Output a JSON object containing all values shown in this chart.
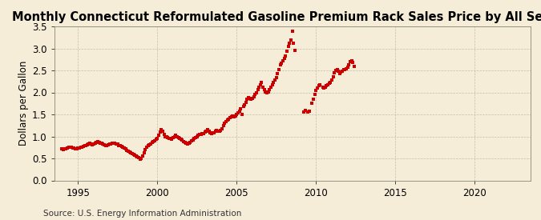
{
  "title": "Monthly Connecticut Reformulated Gasoline Premium Rack Sales Price by All Sellers",
  "ylabel": "Dollars per Gallon",
  "source": "Source: U.S. Energy Information Administration",
  "xlim": [
    1993.5,
    2023.5
  ],
  "ylim": [
    0.0,
    3.5
  ],
  "xticks": [
    1995,
    2000,
    2005,
    2010,
    2015,
    2020
  ],
  "yticks": [
    0.0,
    0.5,
    1.0,
    1.5,
    2.0,
    2.5,
    3.0,
    3.5
  ],
  "marker_color": "#CC0000",
  "background_color": "#F5EDD8",
  "title_fontsize": 10.5,
  "axis_fontsize": 8.5,
  "source_fontsize": 7.5,
  "data": [
    [
      1994.0,
      0.72
    ],
    [
      1994.08,
      0.7
    ],
    [
      1994.17,
      0.71
    ],
    [
      1994.25,
      0.72
    ],
    [
      1994.33,
      0.73
    ],
    [
      1994.42,
      0.75
    ],
    [
      1994.5,
      0.76
    ],
    [
      1994.58,
      0.75
    ],
    [
      1994.67,
      0.74
    ],
    [
      1994.75,
      0.73
    ],
    [
      1994.83,
      0.72
    ],
    [
      1994.92,
      0.72
    ],
    [
      1995.0,
      0.73
    ],
    [
      1995.08,
      0.74
    ],
    [
      1995.17,
      0.75
    ],
    [
      1995.25,
      0.76
    ],
    [
      1995.33,
      0.78
    ],
    [
      1995.42,
      0.79
    ],
    [
      1995.5,
      0.8
    ],
    [
      1995.58,
      0.81
    ],
    [
      1995.67,
      0.82
    ],
    [
      1995.75,
      0.84
    ],
    [
      1995.83,
      0.83
    ],
    [
      1995.92,
      0.81
    ],
    [
      1996.0,
      0.82
    ],
    [
      1996.08,
      0.84
    ],
    [
      1996.17,
      0.86
    ],
    [
      1996.25,
      0.88
    ],
    [
      1996.33,
      0.87
    ],
    [
      1996.42,
      0.85
    ],
    [
      1996.5,
      0.84
    ],
    [
      1996.58,
      0.82
    ],
    [
      1996.67,
      0.81
    ],
    [
      1996.75,
      0.8
    ],
    [
      1996.83,
      0.8
    ],
    [
      1996.92,
      0.81
    ],
    [
      1997.0,
      0.82
    ],
    [
      1997.08,
      0.83
    ],
    [
      1997.17,
      0.84
    ],
    [
      1997.25,
      0.85
    ],
    [
      1997.33,
      0.84
    ],
    [
      1997.42,
      0.83
    ],
    [
      1997.5,
      0.82
    ],
    [
      1997.58,
      0.8
    ],
    [
      1997.67,
      0.79
    ],
    [
      1997.75,
      0.77
    ],
    [
      1997.83,
      0.75
    ],
    [
      1997.92,
      0.73
    ],
    [
      1998.0,
      0.71
    ],
    [
      1998.08,
      0.69
    ],
    [
      1998.17,
      0.67
    ],
    [
      1998.25,
      0.65
    ],
    [
      1998.33,
      0.63
    ],
    [
      1998.42,
      0.61
    ],
    [
      1998.5,
      0.59
    ],
    [
      1998.58,
      0.57
    ],
    [
      1998.67,
      0.55
    ],
    [
      1998.75,
      0.53
    ],
    [
      1998.83,
      0.51
    ],
    [
      1998.92,
      0.49
    ],
    [
      1999.0,
      0.5
    ],
    [
      1999.08,
      0.56
    ],
    [
      1999.17,
      0.63
    ],
    [
      1999.25,
      0.7
    ],
    [
      1999.33,
      0.76
    ],
    [
      1999.42,
      0.79
    ],
    [
      1999.5,
      0.81
    ],
    [
      1999.58,
      0.83
    ],
    [
      1999.67,
      0.86
    ],
    [
      1999.75,
      0.88
    ],
    [
      1999.83,
      0.9
    ],
    [
      1999.92,
      0.93
    ],
    [
      2000.0,
      0.96
    ],
    [
      2000.08,
      1.02
    ],
    [
      2000.17,
      1.1
    ],
    [
      2000.25,
      1.15
    ],
    [
      2000.33,
      1.12
    ],
    [
      2000.42,
      1.05
    ],
    [
      2000.5,
      1.0
    ],
    [
      2000.58,
      0.99
    ],
    [
      2000.67,
      0.97
    ],
    [
      2000.75,
      0.96
    ],
    [
      2000.83,
      0.95
    ],
    [
      2000.92,
      0.94
    ],
    [
      2001.0,
      0.97
    ],
    [
      2001.08,
      1.0
    ],
    [
      2001.17,
      1.02
    ],
    [
      2001.25,
      0.99
    ],
    [
      2001.33,
      0.97
    ],
    [
      2001.42,
      0.96
    ],
    [
      2001.5,
      0.94
    ],
    [
      2001.58,
      0.92
    ],
    [
      2001.67,
      0.89
    ],
    [
      2001.75,
      0.87
    ],
    [
      2001.83,
      0.84
    ],
    [
      2001.92,
      0.82
    ],
    [
      2002.0,
      0.84
    ],
    [
      2002.08,
      0.87
    ],
    [
      2002.17,
      0.9
    ],
    [
      2002.25,
      0.92
    ],
    [
      2002.33,
      0.95
    ],
    [
      2002.42,
      0.98
    ],
    [
      2002.5,
      1.0
    ],
    [
      2002.58,
      1.02
    ],
    [
      2002.67,
      1.04
    ],
    [
      2002.75,
      1.05
    ],
    [
      2002.83,
      1.06
    ],
    [
      2002.92,
      1.07
    ],
    [
      2003.0,
      1.1
    ],
    [
      2003.08,
      1.12
    ],
    [
      2003.17,
      1.15
    ],
    [
      2003.25,
      1.12
    ],
    [
      2003.33,
      1.09
    ],
    [
      2003.42,
      1.07
    ],
    [
      2003.5,
      1.08
    ],
    [
      2003.58,
      1.09
    ],
    [
      2003.67,
      1.11
    ],
    [
      2003.75,
      1.13
    ],
    [
      2003.83,
      1.12
    ],
    [
      2003.92,
      1.11
    ],
    [
      2004.0,
      1.14
    ],
    [
      2004.08,
      1.18
    ],
    [
      2004.17,
      1.24
    ],
    [
      2004.25,
      1.3
    ],
    [
      2004.33,
      1.34
    ],
    [
      2004.42,
      1.37
    ],
    [
      2004.5,
      1.4
    ],
    [
      2004.58,
      1.42
    ],
    [
      2004.67,
      1.44
    ],
    [
      2004.75,
      1.46
    ],
    [
      2004.83,
      1.45
    ],
    [
      2004.92,
      1.47
    ],
    [
      2005.0,
      1.5
    ],
    [
      2005.08,
      1.54
    ],
    [
      2005.17,
      1.58
    ],
    [
      2005.25,
      1.62
    ],
    [
      2005.33,
      1.5
    ],
    [
      2005.42,
      1.68
    ],
    [
      2005.5,
      1.72
    ],
    [
      2005.58,
      1.78
    ],
    [
      2005.67,
      1.84
    ],
    [
      2005.75,
      1.88
    ],
    [
      2005.83,
      1.86
    ],
    [
      2005.92,
      1.84
    ],
    [
      2006.0,
      1.87
    ],
    [
      2006.08,
      1.9
    ],
    [
      2006.17,
      1.95
    ],
    [
      2006.25,
      2.0
    ],
    [
      2006.33,
      2.06
    ],
    [
      2006.42,
      2.12
    ],
    [
      2006.5,
      2.17
    ],
    [
      2006.58,
      2.22
    ],
    [
      2006.67,
      2.12
    ],
    [
      2006.75,
      2.06
    ],
    [
      2006.83,
      2.01
    ],
    [
      2006.92,
      1.99
    ],
    [
      2007.0,
      2.01
    ],
    [
      2007.08,
      2.06
    ],
    [
      2007.17,
      2.12
    ],
    [
      2007.25,
      2.17
    ],
    [
      2007.33,
      2.22
    ],
    [
      2007.42,
      2.28
    ],
    [
      2007.5,
      2.33
    ],
    [
      2007.58,
      2.42
    ],
    [
      2007.67,
      2.52
    ],
    [
      2007.75,
      2.62
    ],
    [
      2007.83,
      2.66
    ],
    [
      2007.92,
      2.72
    ],
    [
      2008.0,
      2.78
    ],
    [
      2008.08,
      2.82
    ],
    [
      2008.17,
      2.93
    ],
    [
      2008.25,
      3.05
    ],
    [
      2008.33,
      3.12
    ],
    [
      2008.42,
      3.2
    ],
    [
      2008.5,
      3.4
    ],
    [
      2008.58,
      3.12
    ],
    [
      2008.67,
      2.95
    ],
    [
      2009.25,
      1.55
    ],
    [
      2009.33,
      1.6
    ],
    [
      2009.5,
      1.55
    ],
    [
      2009.58,
      1.58
    ],
    [
      2009.75,
      1.75
    ],
    [
      2009.83,
      1.85
    ],
    [
      2009.92,
      1.95
    ],
    [
      2010.0,
      2.05
    ],
    [
      2010.08,
      2.1
    ],
    [
      2010.17,
      2.15
    ],
    [
      2010.25,
      2.18
    ],
    [
      2010.42,
      2.12
    ],
    [
      2010.5,
      2.1
    ],
    [
      2010.58,
      2.12
    ],
    [
      2010.67,
      2.15
    ],
    [
      2010.75,
      2.18
    ],
    [
      2010.83,
      2.2
    ],
    [
      2010.92,
      2.22
    ],
    [
      2011.0,
      2.28
    ],
    [
      2011.08,
      2.35
    ],
    [
      2011.17,
      2.45
    ],
    [
      2011.25,
      2.5
    ],
    [
      2011.33,
      2.52
    ],
    [
      2011.42,
      2.48
    ],
    [
      2011.5,
      2.42
    ],
    [
      2011.58,
      2.47
    ],
    [
      2011.67,
      2.48
    ],
    [
      2011.75,
      2.52
    ],
    [
      2011.83,
      2.52
    ],
    [
      2011.92,
      2.53
    ],
    [
      2012.0,
      2.58
    ],
    [
      2012.08,
      2.63
    ],
    [
      2012.17,
      2.7
    ],
    [
      2012.25,
      2.72
    ],
    [
      2012.33,
      2.68
    ],
    [
      2012.42,
      2.6
    ]
  ]
}
